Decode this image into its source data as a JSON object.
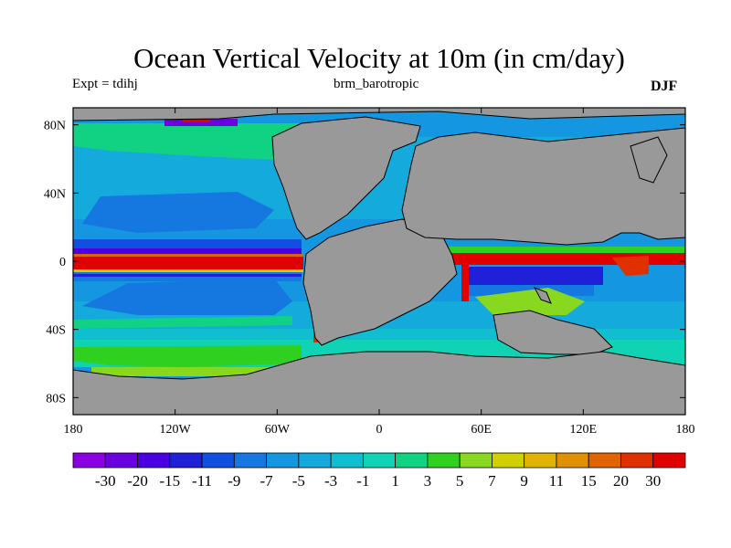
{
  "title": "Ocean Vertical Velocity at 10m (in cm/day)",
  "expt_label": "Expt = tdihj",
  "subtitle": "brm_barotropic",
  "season": "DJF",
  "map": {
    "lon_range": [
      -180,
      180
    ],
    "lat_range": [
      -90,
      90
    ],
    "land_color": "#999999",
    "x_ticks": [
      {
        "lon": -180,
        "label": "180"
      },
      {
        "lon": -120,
        "label": "120W"
      },
      {
        "lon": -60,
        "label": "60W"
      },
      {
        "lon": 0,
        "label": "0"
      },
      {
        "lon": 60,
        "label": "60E"
      },
      {
        "lon": 120,
        "label": "120E"
      },
      {
        "lon": 180,
        "label": "180"
      }
    ],
    "y_ticks": [
      {
        "lat": 80,
        "label": "80N"
      },
      {
        "lat": 40,
        "label": "40N"
      },
      {
        "lat": 0,
        "label": "0"
      },
      {
        "lat": -40,
        "label": "40S"
      },
      {
        "lat": -80,
        "label": "80S"
      }
    ]
  },
  "colorbar": {
    "labels": [
      "-30",
      "-20",
      "-15",
      "-11",
      "-9",
      "-7",
      "-5",
      "-3",
      "-1",
      "1",
      "3",
      "5",
      "7",
      "9",
      "11",
      "15",
      "20",
      "30"
    ],
    "colors": [
      "#8a00e0",
      "#6a00e0",
      "#4a00e0",
      "#2020d8",
      "#1050e0",
      "#1478e0",
      "#1496e0",
      "#14aadc",
      "#10bed0",
      "#10d2b4",
      "#10d282",
      "#30d020",
      "#88d820",
      "#d0d000",
      "#e0b400",
      "#e09000",
      "#e06400",
      "#e03000",
      "#e00000"
    ]
  }
}
